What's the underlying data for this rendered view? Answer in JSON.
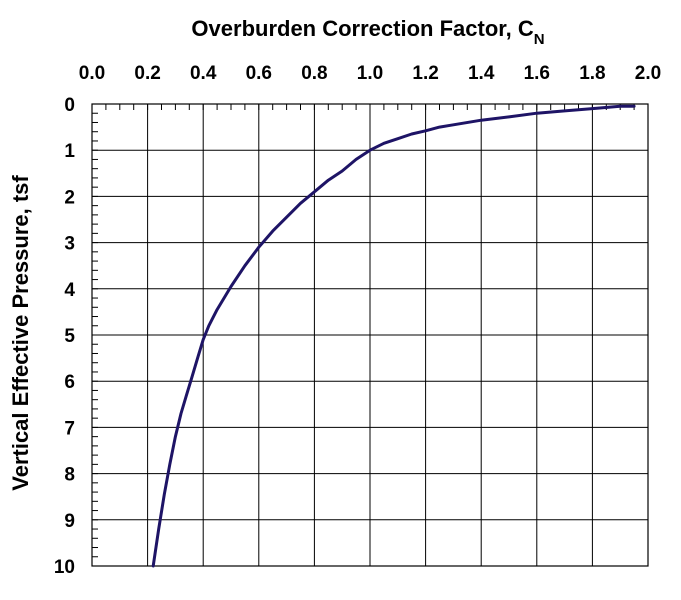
{
  "chart_data": {
    "type": "line",
    "title": "Overburden Correction Factor, C",
    "title_subscript": "N",
    "xlabel_position": "top",
    "ylabel": "Vertical Effective Pressure, tsf",
    "xlim": [
      0.0,
      2.0
    ],
    "ylim": [
      0,
      10
    ],
    "y_inverted": true,
    "x_ticks": [
      "0.0",
      "0.2",
      "0.4",
      "0.6",
      "0.8",
      "1.0",
      "1.2",
      "1.4",
      "1.6",
      "1.8",
      "2.0"
    ],
    "y_ticks": [
      "0",
      "1",
      "2",
      "3",
      "4",
      "5",
      "6",
      "7",
      "8",
      "9",
      "10"
    ],
    "grid": true,
    "line_color": "#1e1466",
    "series": [
      {
        "x": [
          0.22,
          0.24,
          0.26,
          0.28,
          0.3,
          0.32,
          0.34,
          0.36,
          0.38,
          0.4,
          0.42,
          0.45,
          0.5,
          0.55,
          0.6,
          0.65,
          0.7,
          0.75,
          0.8,
          0.85,
          0.9,
          0.95,
          1.0,
          1.05,
          1.1,
          1.15,
          1.2,
          1.25,
          1.3,
          1.4,
          1.5,
          1.6,
          1.7,
          1.8,
          1.9,
          1.95
        ],
        "y": [
          10.0,
          9.2,
          8.45,
          7.8,
          7.2,
          6.7,
          6.3,
          5.9,
          5.5,
          5.1,
          4.8,
          4.45,
          3.95,
          3.5,
          3.1,
          2.75,
          2.45,
          2.15,
          1.9,
          1.65,
          1.45,
          1.2,
          1.0,
          0.85,
          0.75,
          0.65,
          0.58,
          0.5,
          0.45,
          0.35,
          0.28,
          0.2,
          0.15,
          0.1,
          0.05,
          0.05
        ]
      }
    ]
  }
}
